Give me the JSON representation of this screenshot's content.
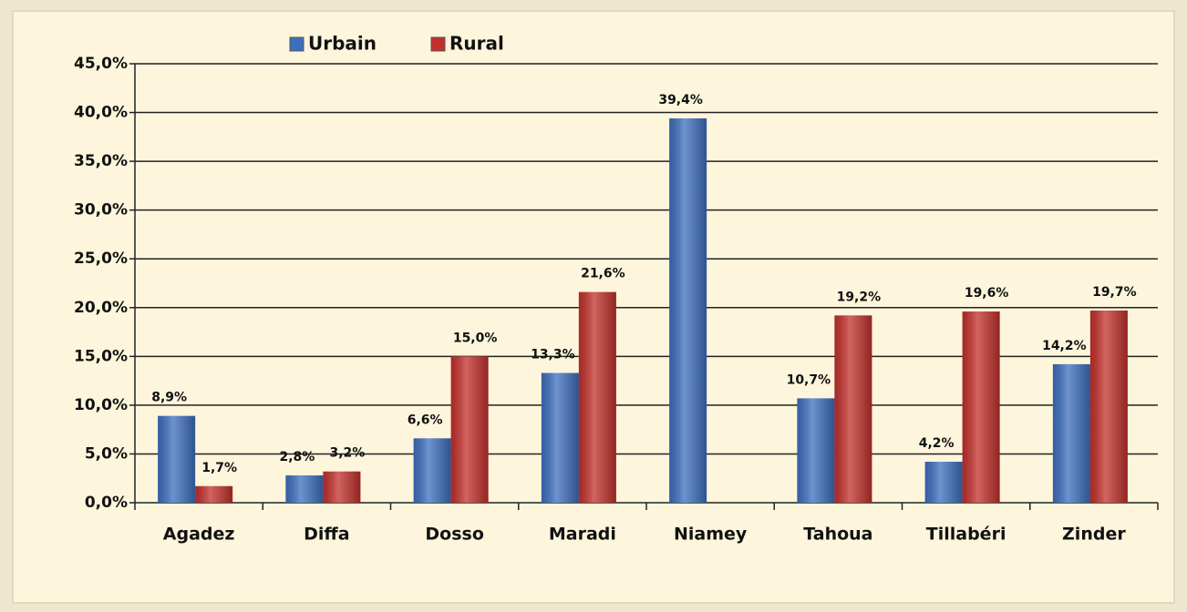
{
  "chart_data": {
    "type": "bar",
    "categories": [
      "Agadez",
      "Diffa",
      "Dosso",
      "Maradi",
      "Niamey",
      "Tahoua",
      "Tillabéri",
      "Zinder"
    ],
    "series": [
      {
        "name": "Urbain",
        "color": "#3d6fbf",
        "values": [
          8.9,
          2.8,
          6.6,
          13.3,
          39.4,
          10.7,
          4.2,
          14.2
        ],
        "value_labels": [
          "8,9%",
          "2,8%",
          "6,6%",
          "13,3%",
          "39,4%",
          "10,7%",
          "4,2%",
          "14,2%"
        ]
      },
      {
        "name": "Rural",
        "color": "#c3302c",
        "values": [
          1.7,
          3.2,
          15.0,
          21.6,
          null,
          19.2,
          19.6,
          19.7
        ],
        "value_labels": [
          "1,7%",
          "3,2%",
          "15,0%",
          "21,6%",
          null,
          "19,2%",
          "19,6%",
          "19,7%"
        ]
      }
    ],
    "ylim": [
      0,
      45
    ],
    "yticks": [
      {
        "value": 0,
        "label": "0,0%"
      },
      {
        "value": 5,
        "label": "5,0%"
      },
      {
        "value": 10,
        "label": "10,0%"
      },
      {
        "value": 15,
        "label": "15,0%"
      },
      {
        "value": 20,
        "label": "20,0%"
      },
      {
        "value": 25,
        "label": "25,0%"
      },
      {
        "value": 30,
        "label": "30,0%"
      },
      {
        "value": 35,
        "label": "35,0%"
      },
      {
        "value": 40,
        "label": "40,0%"
      },
      {
        "value": 45,
        "label": "45,0%"
      }
    ],
    "grid": true,
    "legend": "top"
  }
}
